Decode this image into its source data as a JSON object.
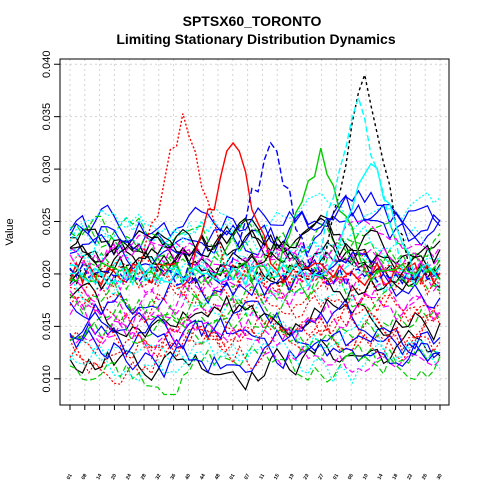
{
  "chart_data": {
    "type": "line",
    "title": "SPTSX60_TORONTO",
    "subtitle": "Limiting Stationary Distribution Dynamics",
    "xlabel": "",
    "ylabel": "Value",
    "ylim": [
      0.0075,
      0.0405
    ],
    "yticks": [
      "0.010",
      "0.015",
      "0.020",
      "0.025",
      "0.030",
      "0.035",
      "0.040"
    ],
    "ytick_values": [
      0.01,
      0.015,
      0.02,
      0.025,
      0.03,
      0.035,
      0.04
    ],
    "n_points": 60,
    "xtick_labels": [
      "01",
      "08",
      "14",
      "20",
      "24",
      "28",
      "32",
      "36",
      "40",
      "44",
      "48",
      "01",
      "07",
      "11",
      "15",
      "19",
      "23",
      "27",
      "01",
      "06",
      "10",
      "14",
      "18",
      "22",
      "26",
      "30"
    ],
    "grid": true,
    "line_colors": [
      "#000000",
      "#ff0000",
      "#00cd00",
      "#0000ff",
      "#00ffff",
      "#ff00ff"
    ],
    "highlight_series": [
      {
        "color": "#000000",
        "dash": "3,3",
        "peak_x": 47,
        "peak_y": 0.039
      },
      {
        "color": "#ff0000",
        "dash": "2,2",
        "peak_x": 18,
        "peak_y": 0.0353
      },
      {
        "color": "#ff0000",
        "dash": "",
        "peak_x": 26,
        "peak_y": 0.0325
      },
      {
        "color": "#00cd00",
        "dash": "",
        "peak_x": 40,
        "peak_y": 0.032
      },
      {
        "color": "#0000ff",
        "dash": "6,3",
        "peak_x": 32,
        "peak_y": 0.0325
      },
      {
        "color": "#00ffff",
        "dash": "6,3",
        "peak_x": 46,
        "peak_y": 0.0368
      },
      {
        "color": "#00ffff",
        "dash": "",
        "peak_x": 48,
        "peak_y": 0.0305
      }
    ],
    "background_series_count": 42,
    "value_range_main": [
      0.0085,
      0.028
    ]
  }
}
